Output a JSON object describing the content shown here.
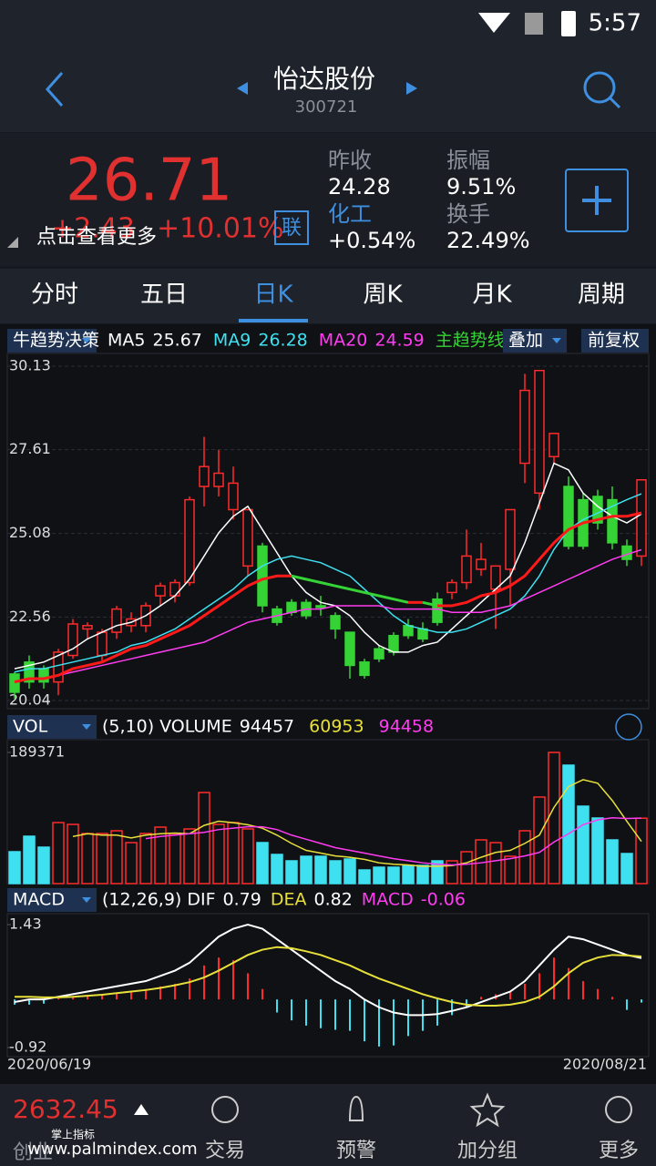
{
  "status": {
    "time": "5:57"
  },
  "header": {
    "title": "怡达股份",
    "code": "300721"
  },
  "quote": {
    "price": 26.71,
    "change": "+2.43",
    "change_pct": "+10.01%",
    "tip": "点击查看更多",
    "link": "联",
    "fields": [
      {
        "label": "昨收",
        "value": "24.28"
      },
      {
        "label": "振幅",
        "value": "9.51%"
      },
      {
        "label": "化工",
        "value": "+0.54%"
      },
      {
        "label": "换手",
        "value": "22.49%"
      }
    ]
  },
  "tabs": {
    "items": [
      "分时",
      "五日",
      "日K",
      "周K",
      "月K",
      "周期"
    ],
    "active": 2
  },
  "bottom": {
    "index_value": "2632.45",
    "brand": "掌上指标",
    "market": "创业",
    "watermark": "www.palmindex.com",
    "nav": [
      "交易",
      "预警",
      "加分组",
      "更多"
    ]
  },
  "chart_data": [
    {
      "type": "candlestick",
      "indicator": "牛趋势决策",
      "overlay": "叠加",
      "adjust": "前复权",
      "up_color": "#ff2b2b",
      "down_color": "#35d335",
      "ylim": [
        20.04,
        30.13
      ],
      "yticks": [
        20.04,
        22.56,
        25.08,
        27.61,
        30.13
      ],
      "grid": true,
      "candles": [
        {
          "open": 20.84,
          "high": 20.9,
          "low": 20.1,
          "close": 20.29
        },
        {
          "open": 21.2,
          "high": 21.4,
          "low": 20.4,
          "close": 20.6
        },
        {
          "open": 21.0,
          "high": 21.1,
          "low": 20.4,
          "close": 20.6
        },
        {
          "open": 20.6,
          "high": 21.6,
          "low": 20.2,
          "close": 21.5
        },
        {
          "open": 21.4,
          "high": 22.5,
          "low": 21.3,
          "close": 22.35
        },
        {
          "open": 22.2,
          "high": 22.4,
          "low": 21.9,
          "close": 22.3
        },
        {
          "open": 21.4,
          "high": 22.2,
          "low": 21.2,
          "close": 22.1
        },
        {
          "open": 22.1,
          "high": 22.9,
          "low": 21.9,
          "close": 22.8
        },
        {
          "open": 22.3,
          "high": 22.7,
          "low": 22.1,
          "close": 22.5
        },
        {
          "open": 22.3,
          "high": 23.0,
          "low": 22.1,
          "close": 22.9
        },
        {
          "open": 23.2,
          "high": 23.6,
          "low": 22.9,
          "close": 23.5
        },
        {
          "open": 23.2,
          "high": 23.7,
          "low": 23.0,
          "close": 23.6
        },
        {
          "open": 23.6,
          "high": 26.2,
          "low": 23.5,
          "close": 26.1
        },
        {
          "open": 26.5,
          "high": 28.0,
          "low": 25.9,
          "close": 27.1
        },
        {
          "open": 26.5,
          "high": 27.6,
          "low": 26.2,
          "close": 26.9
        },
        {
          "open": 25.8,
          "high": 27.1,
          "low": 25.5,
          "close": 26.6
        },
        {
          "open": 24.1,
          "high": 25.8,
          "low": 23.8,
          "close": 25.8
        },
        {
          "open": 24.7,
          "high": 24.8,
          "low": 22.7,
          "close": 22.9
        },
        {
          "open": 22.8,
          "high": 22.9,
          "low": 22.3,
          "close": 22.4
        },
        {
          "open": 23.0,
          "high": 23.1,
          "low": 22.6,
          "close": 22.7
        },
        {
          "open": 23.0,
          "high": 23.1,
          "low": 22.5,
          "close": 22.6
        },
        {
          "open": 22.9,
          "high": 23.2,
          "low": 22.6,
          "close": 22.85
        },
        {
          "open": 22.6,
          "high": 22.7,
          "low": 21.9,
          "close": 22.2
        },
        {
          "open": 22.1,
          "high": 22.1,
          "low": 20.7,
          "close": 21.1
        },
        {
          "open": 21.2,
          "high": 21.3,
          "low": 20.7,
          "close": 20.8
        },
        {
          "open": 21.6,
          "high": 21.7,
          "low": 21.2,
          "close": 21.3
        },
        {
          "open": 22.0,
          "high": 22.1,
          "low": 21.4,
          "close": 21.5
        },
        {
          "open": 22.3,
          "high": 22.5,
          "low": 21.9,
          "close": 22.0
        },
        {
          "open": 22.2,
          "high": 22.4,
          "low": 21.8,
          "close": 21.9
        },
        {
          "open": 23.1,
          "high": 23.3,
          "low": 22.3,
          "close": 22.4
        },
        {
          "open": 23.3,
          "high": 23.7,
          "low": 23.1,
          "close": 23.6
        },
        {
          "open": 23.6,
          "high": 25.2,
          "low": 23.4,
          "close": 24.4
        },
        {
          "open": 24.0,
          "high": 24.8,
          "low": 23.8,
          "close": 24.3
        },
        {
          "open": 23.4,
          "high": 24.1,
          "low": 22.2,
          "close": 24.1
        },
        {
          "open": 24.0,
          "high": 25.8,
          "low": 22.9,
          "close": 25.8
        },
        {
          "open": 27.2,
          "high": 29.9,
          "low": 26.6,
          "close": 29.4
        },
        {
          "open": 26.3,
          "high": 30.0,
          "low": 25.8,
          "close": 30.0
        },
        {
          "open": 27.4,
          "high": 28.1,
          "low": 27.2,
          "close": 28.1
        },
        {
          "open": 26.5,
          "high": 26.8,
          "low": 24.6,
          "close": 24.7
        },
        {
          "open": 26.1,
          "high": 26.3,
          "low": 24.6,
          "close": 24.7
        },
        {
          "open": 26.2,
          "high": 26.4,
          "low": 25.2,
          "close": 25.4
        },
        {
          "open": 26.1,
          "high": 26.5,
          "low": 24.6,
          "close": 24.8
        },
        {
          "open": 24.7,
          "high": 24.9,
          "low": 24.1,
          "close": 24.3
        },
        {
          "open": 24.4,
          "high": 26.7,
          "low": 24.1,
          "close": 26.7
        }
      ],
      "series": [
        {
          "name": "MA5",
          "color": "#ffffff",
          "values": [
            21.0,
            21.1,
            21.2,
            21.4,
            21.6,
            21.9,
            22.1,
            22.3,
            22.4,
            22.6,
            22.9,
            23.2,
            23.7,
            24.4,
            25.1,
            25.6,
            25.9,
            25.2,
            24.5,
            23.8,
            23.3,
            23.0,
            22.9,
            22.6,
            22.1,
            21.7,
            21.5,
            21.5,
            21.7,
            21.8,
            22.2,
            22.6,
            23.0,
            23.4,
            23.8,
            24.8,
            26.0,
            27.2,
            27.0,
            26.3,
            25.9,
            25.6,
            25.4,
            25.67
          ]
        },
        {
          "name": "MA9",
          "color": "#3fe0f0",
          "values": [
            20.9,
            21.0,
            21.0,
            21.1,
            21.2,
            21.3,
            21.4,
            21.5,
            21.7,
            21.8,
            22.0,
            22.2,
            22.5,
            22.8,
            23.1,
            23.4,
            23.8,
            24.1,
            24.3,
            24.4,
            24.3,
            24.2,
            24.0,
            23.8,
            23.4,
            23.0,
            22.6,
            22.3,
            22.2,
            22.1,
            22.1,
            22.2,
            22.4,
            22.6,
            22.8,
            23.2,
            23.8,
            24.6,
            25.2,
            25.5,
            25.7,
            25.9,
            26.1,
            26.28
          ]
        },
        {
          "name": "MA20",
          "color": "#ff3cf0",
          "values": [
            20.6,
            20.7,
            20.7,
            20.8,
            20.9,
            21.0,
            21.1,
            21.2,
            21.3,
            21.4,
            21.5,
            21.6,
            21.7,
            21.8,
            22.0,
            22.2,
            22.4,
            22.5,
            22.6,
            22.7,
            22.8,
            22.8,
            22.9,
            22.9,
            22.9,
            22.9,
            22.8,
            22.8,
            22.8,
            22.8,
            22.7,
            22.7,
            22.7,
            22.8,
            22.9,
            23.1,
            23.3,
            23.5,
            23.7,
            23.9,
            24.1,
            24.3,
            24.45,
            24.59
          ]
        }
      ],
      "trend": {
        "name": "主趋势线",
        "label_color": "#35d335",
        "up_color": "#ff1a1a",
        "down_color": "#35d335",
        "values": [
          20.6,
          20.7,
          20.7,
          20.8,
          21.0,
          21.1,
          21.2,
          21.4,
          21.6,
          21.7,
          21.9,
          22.1,
          22.3,
          22.6,
          22.9,
          23.2,
          23.5,
          23.7,
          23.8,
          23.8,
          23.7,
          23.6,
          23.5,
          23.4,
          23.3,
          23.2,
          23.1,
          23.0,
          23.0,
          22.9,
          22.9,
          23.0,
          23.2,
          23.3,
          23.5,
          23.8,
          24.3,
          24.8,
          25.2,
          25.4,
          25.5,
          25.6,
          25.6,
          25.7
        ]
      }
    },
    {
      "type": "bar",
      "indicator": "VOL",
      "params": "(5,10)",
      "label": "VOLUME",
      "ylim": [
        0,
        189371
      ],
      "yticks": [
        189371
      ],
      "up_color": "#ff2b2b",
      "down_color": "#3fe0f0",
      "values": [
        46028,
        68385,
        52604,
        88112,
        85482,
        72331,
        72331,
        76276,
        59180,
        72331,
        81536,
        72331,
        78906,
        131510,
        85482,
        88112,
        78906,
        59180,
        42083,
        32878,
        39453,
        39453,
        32878,
        35508,
        19727,
        23672,
        23672,
        26302,
        26302,
        32878,
        32878,
        46028,
        63125,
        59180,
        39453,
        76276,
        124935,
        189371,
        170963,
        111784,
        94687,
        63125,
        43398,
        94457
      ],
      "series": [
        {
          "color": "#e8e03a",
          "values": [
            null,
            null,
            null,
            null,
            68000,
            72000,
            70000,
            70000,
            66000,
            70000,
            72000,
            73000,
            72000,
            84000,
            90000,
            88000,
            85000,
            80000,
            70000,
            58000,
            48000,
            44000,
            40000,
            38000,
            35000,
            30000,
            28000,
            27000,
            25000,
            25000,
            26000,
            30000,
            38000,
            45000,
            48000,
            58000,
            70000,
            110000,
            140000,
            150000,
            145000,
            120000,
            90000,
            60953
          ]
        },
        {
          "color": "#ff3cf0",
          "values": [
            null,
            null,
            null,
            null,
            null,
            null,
            null,
            null,
            null,
            65000,
            68000,
            70000,
            72000,
            74000,
            78000,
            80000,
            82000,
            82000,
            78000,
            70000,
            64000,
            58000,
            52000,
            48000,
            44000,
            40000,
            36000,
            33000,
            30000,
            28000,
            27000,
            28000,
            30000,
            33000,
            36000,
            40000,
            45000,
            60000,
            72000,
            85000,
            92000,
            95000,
            94000,
            94458
          ]
        }
      ]
    },
    {
      "type": "macd",
      "indicator": "MACD",
      "params": "(12,26,9)",
      "label": "MACD",
      "ylim": [
        -0.92,
        1.43
      ],
      "yticks": [
        -0.92,
        1.43
      ],
      "up_color": "#ff2b2b",
      "down_color": "#3fe0f0",
      "x_labels": [
        "2020/06/19",
        "2020/08/21"
      ],
      "values": [
        -0.1,
        -0.1,
        -0.08,
        0.02,
        0.05,
        0.06,
        0.08,
        0.12,
        0.14,
        0.2,
        0.25,
        0.3,
        0.4,
        0.65,
        0.8,
        0.75,
        0.5,
        0.2,
        -0.25,
        -0.4,
        -0.5,
        -0.55,
        -0.58,
        -0.6,
        -0.8,
        -0.9,
        -0.88,
        -0.7,
        -0.6,
        -0.5,
        -0.3,
        -0.15,
        0.05,
        0.1,
        0.15,
        0.3,
        0.5,
        0.8,
        0.6,
        0.35,
        0.2,
        0.05,
        -0.2,
        -0.06
      ],
      "series": [
        {
          "name": "DIF",
          "color": "#ffffff",
          "values": [
            -0.05,
            0.0,
            0.0,
            0.05,
            0.1,
            0.15,
            0.2,
            0.25,
            0.3,
            0.35,
            0.45,
            0.55,
            0.7,
            0.95,
            1.2,
            1.35,
            1.43,
            1.35,
            1.15,
            0.95,
            0.75,
            0.55,
            0.35,
            0.2,
            0.0,
            -0.15,
            -0.25,
            -0.3,
            -0.3,
            -0.28,
            -0.22,
            -0.15,
            -0.05,
            0.05,
            0.15,
            0.35,
            0.65,
            0.95,
            1.2,
            1.15,
            1.05,
            0.95,
            0.85,
            0.79
          ]
        },
        {
          "name": "DEA",
          "color": "#e8e03a",
          "values": [
            0.05,
            0.05,
            0.04,
            0.04,
            0.05,
            0.07,
            0.09,
            0.12,
            0.15,
            0.18,
            0.22,
            0.27,
            0.33,
            0.42,
            0.55,
            0.7,
            0.85,
            0.95,
            1.0,
            0.98,
            0.92,
            0.85,
            0.75,
            0.65,
            0.52,
            0.4,
            0.3,
            0.2,
            0.1,
            0.02,
            -0.05,
            -0.1,
            -0.12,
            -0.12,
            -0.1,
            -0.05,
            0.05,
            0.25,
            0.5,
            0.7,
            0.8,
            0.85,
            0.84,
            0.82
          ]
        }
      ]
    }
  ]
}
